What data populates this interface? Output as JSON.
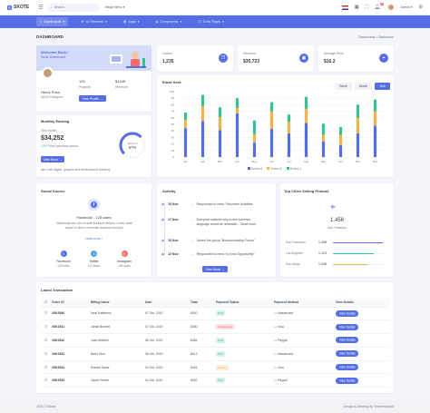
{
  "brand": {
    "name": "SKOTE"
  },
  "topbar": {
    "search_placeholder": "Search...",
    "mega_menu": "Mega Menu",
    "notification_count": "3",
    "user_name": "Admin"
  },
  "nav": [
    "Dashboards",
    "UI Elements",
    "Apps",
    "Components",
    "Extra Pages"
  ],
  "page": {
    "title": "DASHBOARD",
    "breadcrumb": "Dashboards  /  Dashboard"
  },
  "welcome": {
    "title": "Welcome Back !",
    "subtitle": "Skote Dashboard",
    "name": "Henry Price",
    "role": "UI/UX Designer",
    "projects_value": "125",
    "projects_label": "Projects",
    "revenue_value": "$1245",
    "revenue_label": "Revenue",
    "button": "View Profile"
  },
  "monthly": {
    "title": "Monthly Earning",
    "period": "This month",
    "amount": "$34,252",
    "change": "12%",
    "change_suffix": "From previous period",
    "gauge_value": 67,
    "gauge_label": "67%",
    "gauge_caption": "Series A",
    "button": "View More",
    "note": "We craft digital, graphic and dimensional thinking."
  },
  "stats": [
    {
      "label": "Orders",
      "value": "1,235",
      "icon": "copy-icon"
    },
    {
      "label": "Revenue",
      "value": "$35,723",
      "icon": "archive-icon"
    },
    {
      "label": "Average Price",
      "value": "$16.2",
      "icon": "tag-icon"
    }
  ],
  "email": {
    "title": "Email Sent",
    "tabs": [
      "Week",
      "Month",
      "Year"
    ],
    "active_tab": "Year"
  },
  "chart_data": {
    "type": "bar",
    "stacked": true,
    "categories": [
      "Jan",
      "Feb",
      "Mar",
      "Apr",
      "May",
      "Jun",
      "Jul",
      "Aug",
      "Sep",
      "Oct",
      "Nov",
      "Dec"
    ],
    "series": [
      {
        "name": "Series A",
        "values": [
          44,
          55,
          41,
          67,
          22,
          43,
          36,
          52,
          24,
          18,
          36,
          48
        ],
        "color": "#556ee6"
      },
      {
        "name": "Series B",
        "values": [
          13,
          23,
          20,
          8,
          13,
          27,
          18,
          22,
          10,
          16,
          24,
          22
        ],
        "color": "#f1b44c"
      },
      {
        "name": "Series C",
        "values": [
          11,
          17,
          15,
          15,
          21,
          14,
          11,
          18,
          17,
          12,
          20,
          18
        ],
        "color": "#34c38f"
      }
    ],
    "ylim": [
      0,
      100
    ],
    "yticks": [
      "0",
      "10",
      "20",
      "30",
      "40",
      "50",
      "60",
      "70",
      "80",
      "90",
      "100"
    ]
  },
  "social": {
    "title": "Social Source",
    "heading": "Facebook",
    "heading_sales": "- 125 sales",
    "text": "Maecenas nec odio et ante tincidunt tempus. Donec vitae sapien ut libero venenatis faucibus tincidunt.",
    "link": "Learn more ›",
    "items": [
      {
        "name": "Facebook",
        "sales": "125 sales",
        "color": "#556ee6",
        "icon": "facebook-icon"
      },
      {
        "name": "Twitter",
        "sales": "112 sales",
        "color": "#50a5f1",
        "icon": "twitter-icon"
      },
      {
        "name": "Instagram",
        "sales": "104 sales",
        "color": "#f46a6a",
        "icon": "instagram-icon"
      }
    ]
  },
  "activity": {
    "title": "Activity",
    "button": "View More",
    "items": [
      {
        "date": "15 Nov",
        "text": "Responded to need “Volunteer Activities"
      },
      {
        "date": "17 Nov",
        "text": "Everyone realizes why a new common language would be desirable... Read more"
      },
      {
        "date": "15 Nov",
        "text": "Joined the group “Boardsmanship Forum”"
      },
      {
        "date": "12 Nov",
        "text": "Responded to need “In-Kind Opportunity”"
      }
    ]
  },
  "cities": {
    "title": "Top Cities Selling Product",
    "value": "1,456",
    "city": "San Francisco",
    "rows": [
      {
        "name": "San Francisco",
        "value": "1,456",
        "pct": 0.95,
        "color": "#556ee6"
      },
      {
        "name": "Los Angeles",
        "value": "1,123",
        "pct": 0.78,
        "color": "#34c38f"
      },
      {
        "name": "San Diego",
        "value": "1,026",
        "pct": 0.68,
        "color": "#f1b44c"
      }
    ]
  },
  "transactions": {
    "title": "Latest Transaction",
    "headers": [
      "Order ID",
      "Billing Name",
      "Date",
      "Total",
      "Payment Status",
      "Payment Method",
      "View Details"
    ],
    "rows": [
      {
        "id": "#SK2540",
        "name": "Neal Matthews",
        "date": "07 Oct, 2019",
        "total": "$400",
        "status": "Paid",
        "method": "Mastercard",
        "action": "View Details"
      },
      {
        "id": "#SK2541",
        "name": "Jamal Burnett",
        "date": "07 Oct, 2019",
        "total": "$380",
        "status": "Chargeback",
        "method": "Visa",
        "action": "View Details"
      },
      {
        "id": "#SK2542",
        "name": "Juan Mitchell",
        "date": "06 Oct, 2019",
        "total": "$384",
        "status": "Paid",
        "method": "Paypal",
        "action": "View Details"
      },
      {
        "id": "#SK2543",
        "name": "Barry Dick",
        "date": "05 Oct, 2019",
        "total": "$412",
        "status": "Paid",
        "method": "Mastercard",
        "action": "View Details"
      },
      {
        "id": "#SK2544",
        "name": "Ronald Taylor",
        "date": "04 Oct, 2019",
        "total": "$404",
        "status": "Refund",
        "method": "Visa",
        "action": "View Details"
      },
      {
        "id": "#SK2545",
        "name": "Jacob Hunter",
        "date": "04 Oct, 2019",
        "total": "$392",
        "status": "Paid",
        "method": "Paypal",
        "action": "View Details"
      }
    ]
  },
  "footer": {
    "left": "2021 © Skote.",
    "right": "Design & Develop by Themesbrand"
  },
  "colors": {
    "primary": "#556ee6",
    "success": "#34c38f",
    "warning": "#f1b44c",
    "danger": "#f46a6a"
  }
}
